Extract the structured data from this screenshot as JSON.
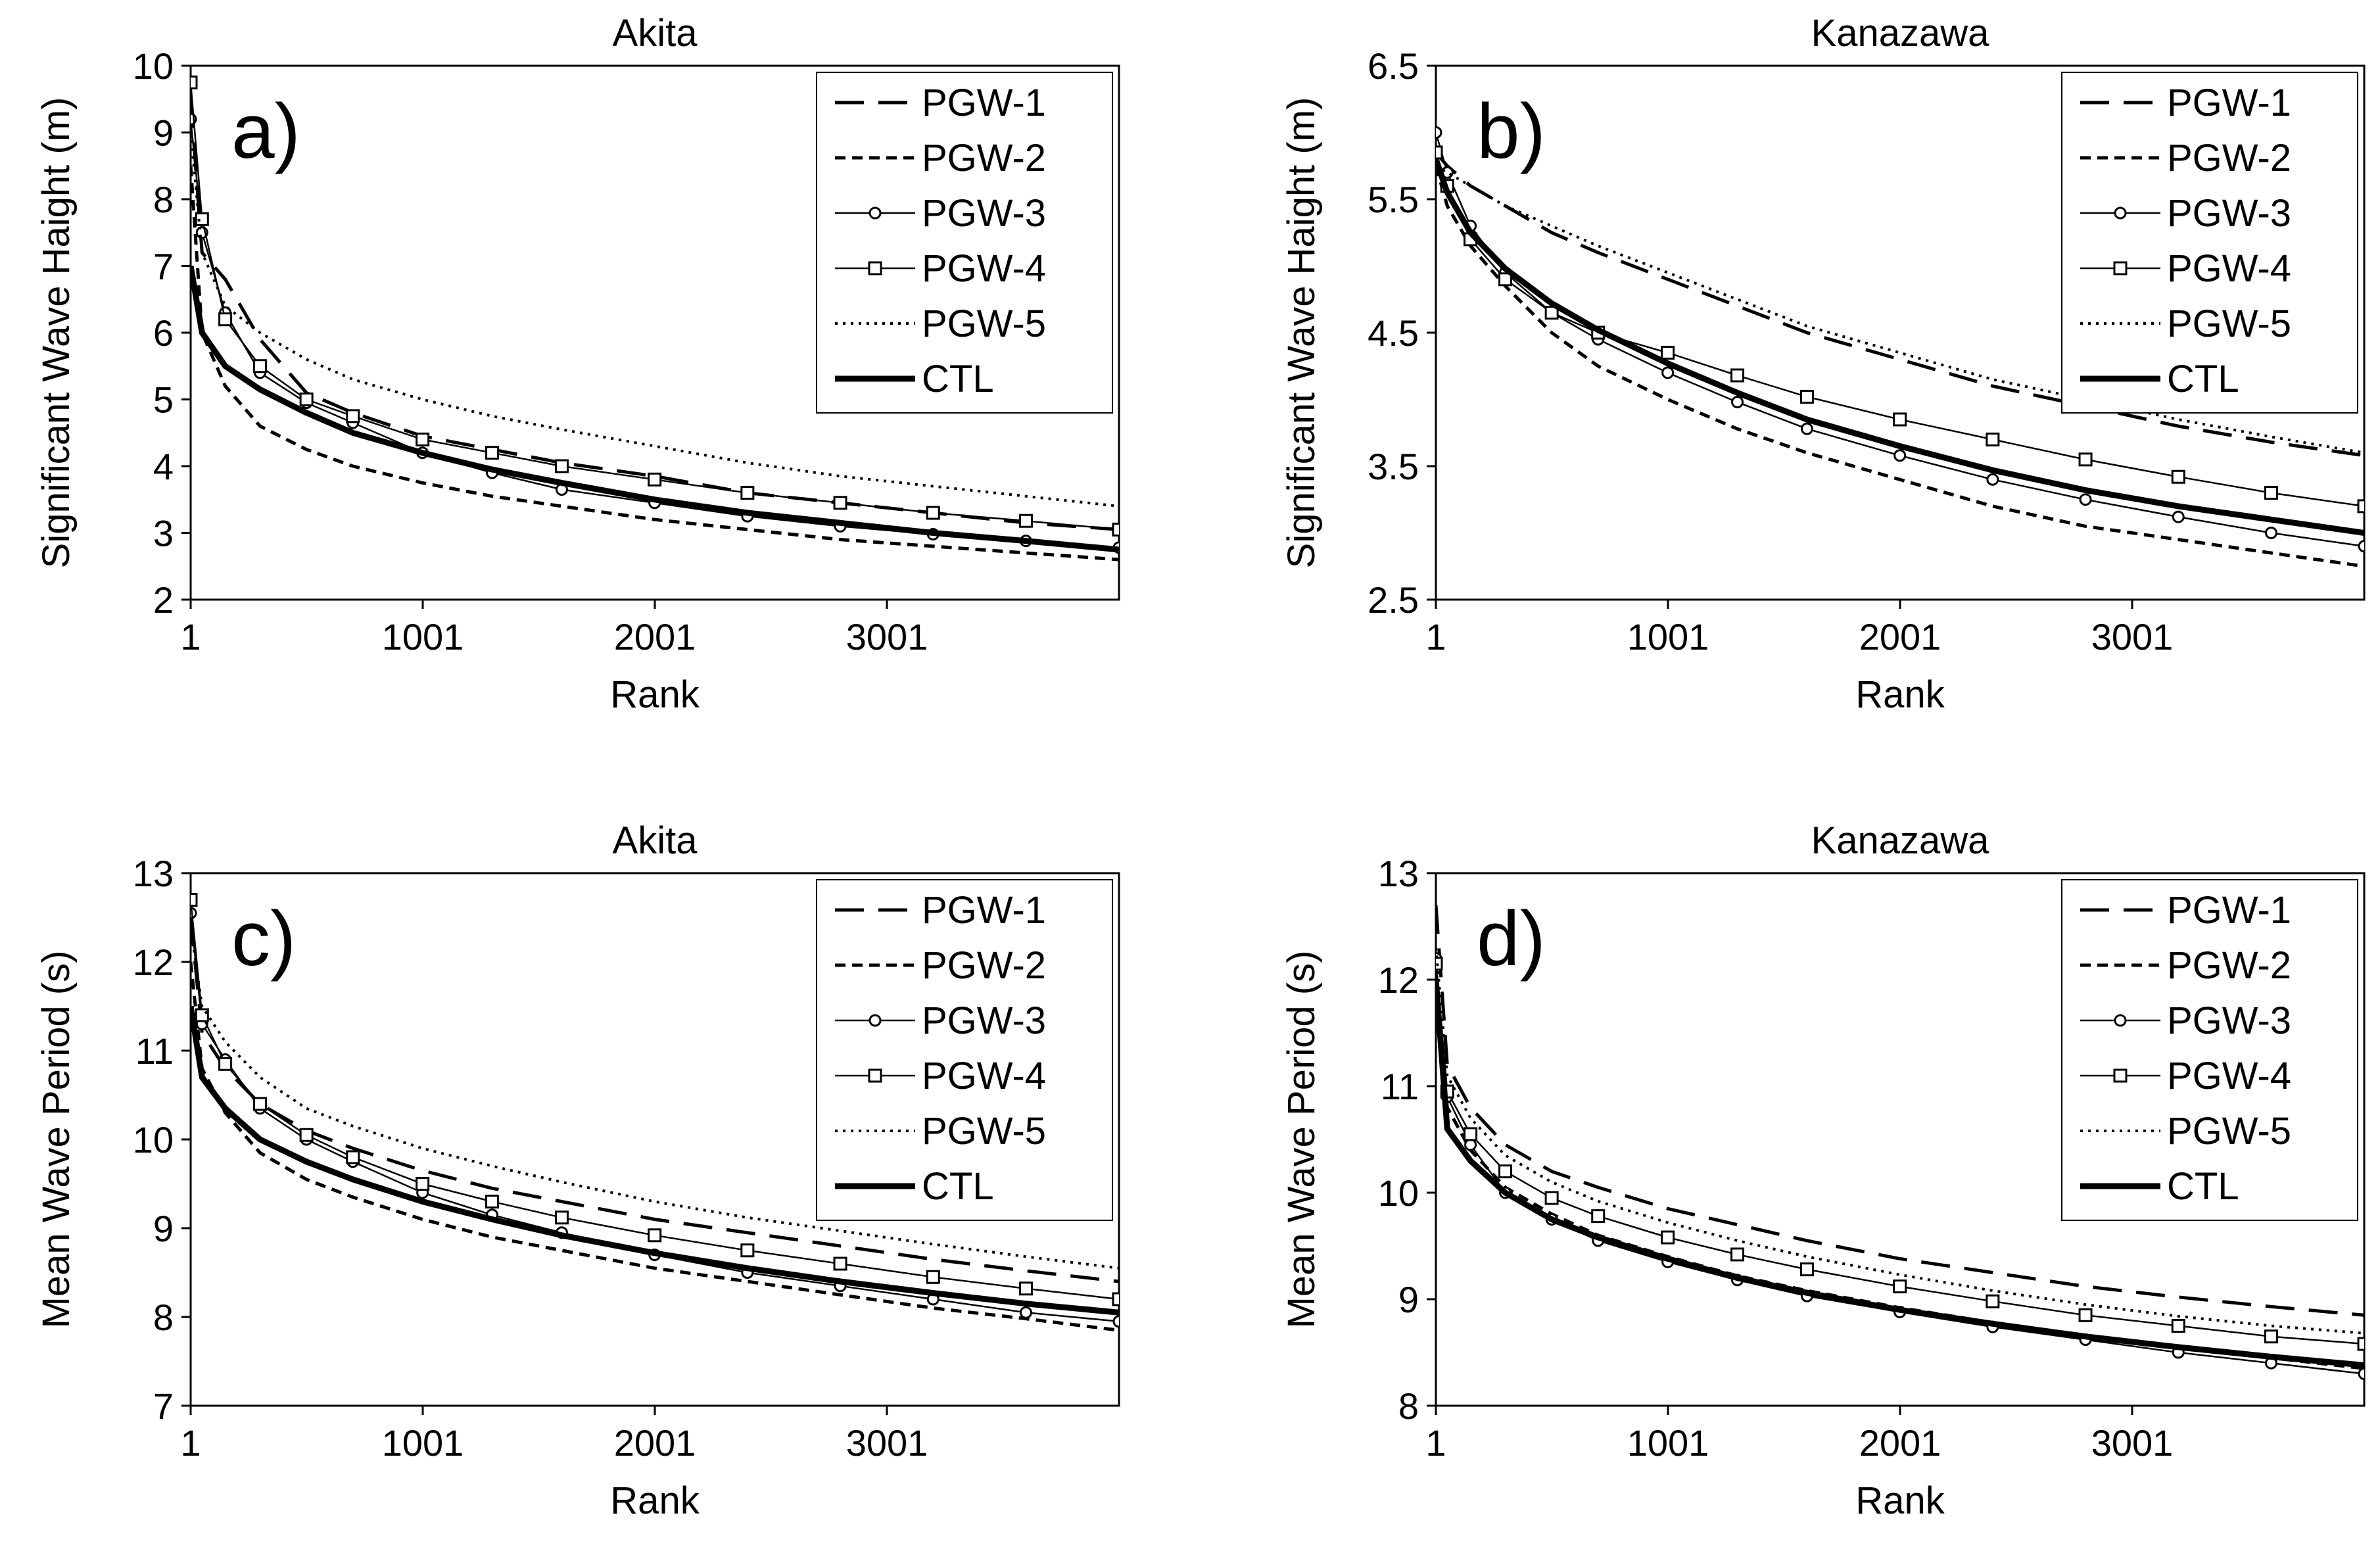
{
  "figure": {
    "panels_count": 4
  },
  "chart_data": [
    {
      "type": "line",
      "panel_label": "a)",
      "title": "Akita",
      "xlabel": "Rank",
      "ylabel": "Significant Wave Haight (m)",
      "xlim": [
        1,
        4001
      ],
      "ylim": [
        2,
        10
      ],
      "xticks": [
        1,
        1001,
        2001,
        3001
      ],
      "yticks": [
        2,
        3,
        4,
        5,
        6,
        7,
        8,
        9,
        10
      ],
      "legend_position": "top-right",
      "x": [
        1,
        50,
        150,
        300,
        500,
        700,
        1000,
        1300,
        1600,
        2000,
        2400,
        2800,
        3200,
        3600,
        4001
      ],
      "series": [
        {
          "name": "PGW-1",
          "style": "longdash",
          "values": [
            9.5,
            7.2,
            6.8,
            5.9,
            5.1,
            4.8,
            4.45,
            4.25,
            4.05,
            3.85,
            3.6,
            3.45,
            3.3,
            3.15,
            3.05
          ]
        },
        {
          "name": "PGW-2",
          "style": "shortdash",
          "values": [
            8.5,
            6.0,
            5.2,
            4.6,
            4.25,
            4.0,
            3.75,
            3.55,
            3.4,
            3.2,
            3.05,
            2.9,
            2.8,
            2.7,
            2.6
          ]
        },
        {
          "name": "PGW-3",
          "style": "circle",
          "values": [
            9.2,
            7.5,
            6.3,
            5.4,
            4.95,
            4.65,
            4.2,
            3.9,
            3.65,
            3.45,
            3.25,
            3.1,
            2.98,
            2.88,
            2.78
          ]
        },
        {
          "name": "PGW-4",
          "style": "square",
          "values": [
            9.75,
            7.7,
            6.2,
            5.5,
            5.0,
            4.75,
            4.4,
            4.2,
            4.0,
            3.8,
            3.6,
            3.45,
            3.3,
            3.18,
            3.05
          ]
        },
        {
          "name": "PGW-5",
          "style": "dotted",
          "values": [
            9.0,
            7.2,
            6.4,
            6.0,
            5.6,
            5.3,
            5.0,
            4.75,
            4.55,
            4.3,
            4.05,
            3.85,
            3.7,
            3.55,
            3.4
          ]
        },
        {
          "name": "CTL",
          "style": "thick",
          "values": [
            7.0,
            6.0,
            5.5,
            5.15,
            4.8,
            4.5,
            4.2,
            3.95,
            3.75,
            3.5,
            3.3,
            3.15,
            3.0,
            2.88,
            2.75
          ]
        }
      ]
    },
    {
      "type": "line",
      "panel_label": "b)",
      "title": "Kanazawa",
      "xlabel": "Rank",
      "ylabel": "Significant Wave Haight (m)",
      "xlim": [
        1,
        4001
      ],
      "ylim": [
        2.5,
        6.5
      ],
      "xticks": [
        1,
        1001,
        2001,
        3001
      ],
      "yticks": [
        2.5,
        3.5,
        4.5,
        5.5,
        6.5
      ],
      "legend_position": "top-right",
      "x": [
        1,
        50,
        150,
        300,
        500,
        700,
        1000,
        1300,
        1600,
        2000,
        2400,
        2800,
        3200,
        3600,
        4001
      ],
      "series": [
        {
          "name": "PGW-1",
          "style": "longdash",
          "values": [
            5.85,
            5.75,
            5.6,
            5.45,
            5.25,
            5.1,
            4.9,
            4.7,
            4.5,
            4.3,
            4.1,
            3.95,
            3.8,
            3.68,
            3.58
          ]
        },
        {
          "name": "PGW-2",
          "style": "shortdash",
          "values": [
            5.75,
            5.45,
            5.15,
            4.85,
            4.5,
            4.25,
            4.0,
            3.78,
            3.6,
            3.4,
            3.2,
            3.05,
            2.95,
            2.85,
            2.75
          ]
        },
        {
          "name": "PGW-3",
          "style": "circle",
          "values": [
            6.0,
            5.7,
            5.3,
            4.95,
            4.65,
            4.45,
            4.2,
            3.98,
            3.78,
            3.58,
            3.4,
            3.25,
            3.12,
            3.0,
            2.9
          ]
        },
        {
          "name": "PGW-4",
          "style": "square",
          "values": [
            5.85,
            5.6,
            5.2,
            4.9,
            4.65,
            4.5,
            4.35,
            4.18,
            4.02,
            3.85,
            3.7,
            3.55,
            3.42,
            3.3,
            3.2
          ]
        },
        {
          "name": "PGW-5",
          "style": "dotted",
          "values": [
            5.75,
            5.7,
            5.6,
            5.45,
            5.3,
            5.15,
            4.95,
            4.75,
            4.55,
            4.35,
            4.15,
            4.0,
            3.85,
            3.72,
            3.6
          ]
        },
        {
          "name": "CTL",
          "style": "thick",
          "values": [
            5.8,
            5.55,
            5.25,
            4.98,
            4.72,
            4.52,
            4.27,
            4.05,
            3.85,
            3.65,
            3.47,
            3.32,
            3.2,
            3.1,
            3.0
          ]
        }
      ]
    },
    {
      "type": "line",
      "panel_label": "c)",
      "title": "Akita",
      "xlabel": "Rank",
      "ylabel": "Mean Wave Period (s)",
      "xlim": [
        1,
        4001
      ],
      "ylim": [
        7,
        13
      ],
      "xticks": [
        1,
        1001,
        2001,
        3001
      ],
      "yticks": [
        7,
        8,
        9,
        10,
        11,
        12,
        13
      ],
      "legend_position": "top-right",
      "x": [
        1,
        50,
        150,
        300,
        500,
        700,
        1000,
        1300,
        1600,
        2000,
        2400,
        2800,
        3200,
        3600,
        4001
      ],
      "series": [
        {
          "name": "PGW-1",
          "style": "longdash",
          "values": [
            12.5,
            11.2,
            10.8,
            10.4,
            10.1,
            9.9,
            9.65,
            9.45,
            9.3,
            9.1,
            8.95,
            8.8,
            8.65,
            8.52,
            8.4
          ]
        },
        {
          "name": "PGW-2",
          "style": "shortdash",
          "values": [
            12.0,
            10.8,
            10.3,
            9.85,
            9.55,
            9.35,
            9.1,
            8.9,
            8.75,
            8.55,
            8.4,
            8.25,
            8.1,
            7.98,
            7.85
          ]
        },
        {
          "name": "PGW-3",
          "style": "circle",
          "values": [
            12.55,
            11.3,
            10.9,
            10.35,
            10.0,
            9.75,
            9.4,
            9.15,
            8.95,
            8.7,
            8.5,
            8.35,
            8.2,
            8.05,
            7.95
          ]
        },
        {
          "name": "PGW-4",
          "style": "square",
          "values": [
            12.7,
            11.4,
            10.85,
            10.4,
            10.05,
            9.8,
            9.5,
            9.3,
            9.12,
            8.92,
            8.75,
            8.6,
            8.45,
            8.32,
            8.2
          ]
        },
        {
          "name": "PGW-5",
          "style": "dotted",
          "values": [
            12.4,
            11.5,
            11.1,
            10.7,
            10.35,
            10.15,
            9.9,
            9.7,
            9.52,
            9.3,
            9.12,
            8.97,
            8.82,
            8.68,
            8.55
          ]
        },
        {
          "name": "CTL",
          "style": "thick",
          "values": [
            11.5,
            10.7,
            10.35,
            10.0,
            9.75,
            9.55,
            9.3,
            9.1,
            8.92,
            8.72,
            8.55,
            8.4,
            8.27,
            8.15,
            8.05
          ]
        }
      ]
    },
    {
      "type": "line",
      "panel_label": "d)",
      "title": "Kanazawa",
      "xlabel": "Rank",
      "ylabel": "Mean Wave Period (s)",
      "xlim": [
        1,
        4001
      ],
      "ylim": [
        8,
        13
      ],
      "xticks": [
        1,
        1001,
        2001,
        3001
      ],
      "yticks": [
        8,
        9,
        10,
        11,
        12,
        13
      ],
      "legend_position": "top-right",
      "x": [
        1,
        50,
        150,
        300,
        500,
        700,
        1000,
        1300,
        1600,
        2000,
        2400,
        2800,
        3200,
        3600,
        4001
      ],
      "series": [
        {
          "name": "PGW-1",
          "style": "longdash",
          "values": [
            12.7,
            11.2,
            10.8,
            10.45,
            10.2,
            10.05,
            9.85,
            9.7,
            9.55,
            9.38,
            9.25,
            9.12,
            9.02,
            8.93,
            8.85
          ]
        },
        {
          "name": "PGW-2",
          "style": "shortdash",
          "values": [
            11.8,
            10.8,
            10.4,
            10.05,
            9.8,
            9.6,
            9.4,
            9.22,
            9.08,
            8.92,
            8.78,
            8.65,
            8.55,
            8.45,
            8.35
          ]
        },
        {
          "name": "PGW-3",
          "style": "circle",
          "values": [
            12.2,
            10.9,
            10.45,
            10.0,
            9.75,
            9.55,
            9.35,
            9.18,
            9.03,
            8.88,
            8.74,
            8.62,
            8.5,
            8.4,
            8.3
          ]
        },
        {
          "name": "PGW-4",
          "style": "square",
          "values": [
            12.15,
            10.95,
            10.55,
            10.2,
            9.95,
            9.78,
            9.58,
            9.42,
            9.28,
            9.12,
            8.98,
            8.85,
            8.75,
            8.65,
            8.58
          ]
        },
        {
          "name": "PGW-5",
          "style": "dotted",
          "values": [
            12.3,
            11.1,
            10.7,
            10.35,
            10.1,
            9.92,
            9.72,
            9.55,
            9.4,
            9.23,
            9.08,
            8.95,
            8.84,
            8.75,
            8.68
          ]
        },
        {
          "name": "CTL",
          "style": "thick",
          "values": [
            12.0,
            10.6,
            10.3,
            10.0,
            9.75,
            9.58,
            9.38,
            9.2,
            9.06,
            8.9,
            8.77,
            8.65,
            8.55,
            8.46,
            8.38
          ]
        }
      ]
    }
  ]
}
